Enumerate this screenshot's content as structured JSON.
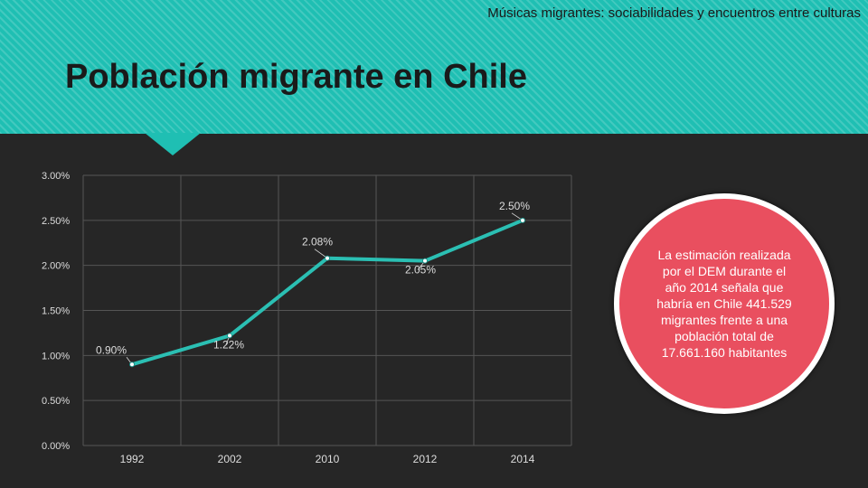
{
  "header": {
    "subtitle": "Músicas migrantes: sociabilidades y encuentros entre culturas",
    "title": "Población migrante en Chile"
  },
  "colors": {
    "header_bg": "#1fbfb3",
    "background": "#262626",
    "line": "#2bbfb3",
    "note_bg": "#e94f5f"
  },
  "note": {
    "text": "La estimación realizada por el DEM durante el año 2014 señala que habría en Chile 441.529 migrantes frente a una población total de 17.661.160 habitantes"
  },
  "chart_data": {
    "type": "line",
    "categories": [
      "1992",
      "2002",
      "2010",
      "2012",
      "2014"
    ],
    "series": [
      {
        "values": [
          0.9,
          1.22,
          2.08,
          2.05,
          2.5
        ],
        "labels": [
          "0.90%",
          "1.22%",
          "2.08%",
          "2.05%",
          "2.50%"
        ]
      }
    ],
    "ylim": [
      0,
      3
    ],
    "yticks": [
      {
        "value": 0,
        "label": "0.00%"
      },
      {
        "value": 0.5,
        "label": "0.50%"
      },
      {
        "value": 1,
        "label": "1.00%"
      },
      {
        "value": 1.5,
        "label": "1.50%"
      },
      {
        "value": 2,
        "label": "2.00%"
      },
      {
        "value": 2.5,
        "label": "2.50%"
      },
      {
        "value": 3,
        "label": "3.00%"
      }
    ],
    "grid": true,
    "legend": "none"
  }
}
